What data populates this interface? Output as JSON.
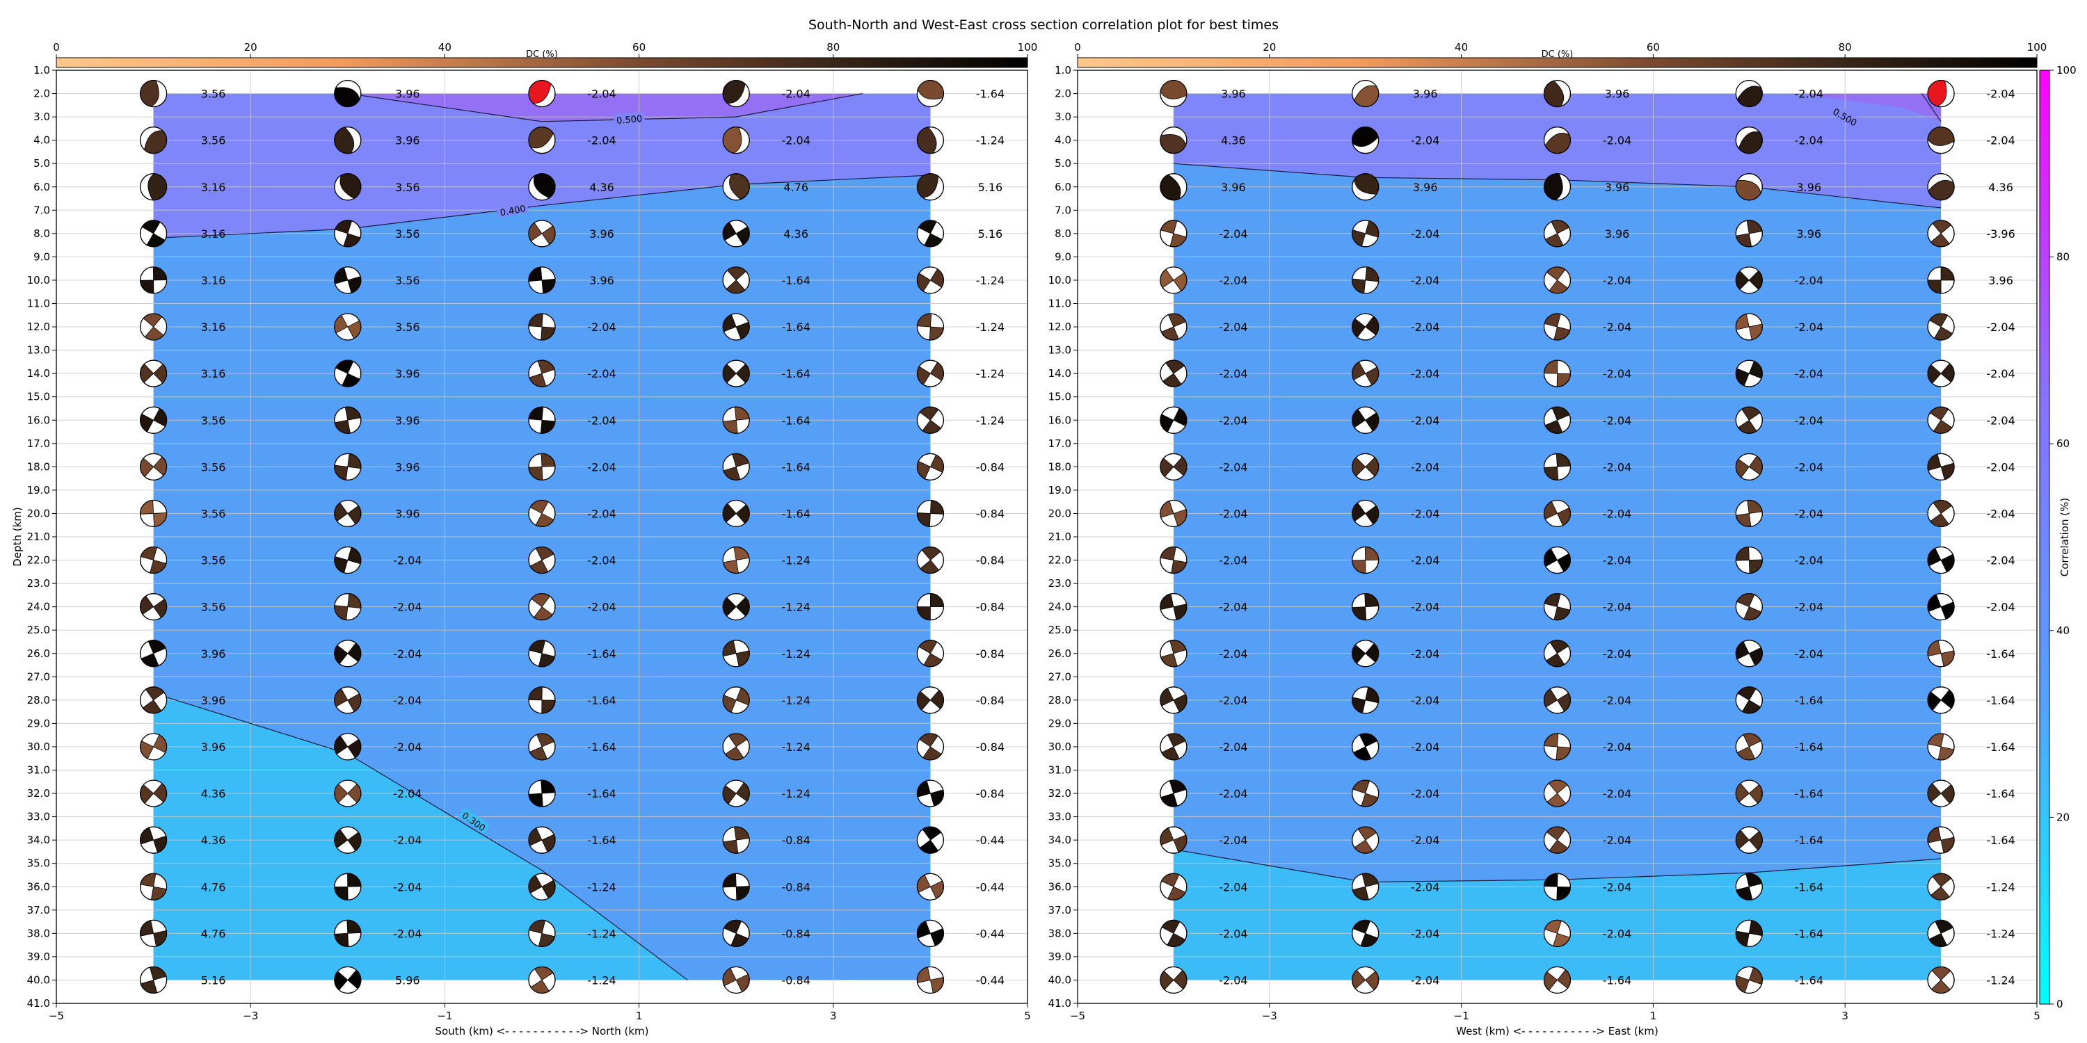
{
  "title": "South-North and West-East cross section correlation plot for best times",
  "colors": {
    "dc_scale": [
      "#ffc88a",
      "#f09a5c",
      "#7a4a30",
      "#3a2618",
      "#000000"
    ],
    "corr_scale": [
      "#00ffff",
      "#55a0ff",
      "#7f80ff",
      "#ff00ff"
    ],
    "band_low": "#3bbcf7",
    "band_mid": "#55a0f6",
    "band_high": "#7f86fa",
    "band_top": "#9470f5",
    "highlight": "#e8161e"
  },
  "chart_data": [
    {
      "type": "scatter",
      "panel": "south-north",
      "xlabel": "South (km) <- - - - - - - - - - -> North (km)",
      "ylabel": "Depth (km)",
      "xlim": [
        -5,
        5
      ],
      "ylim": [
        41,
        1
      ],
      "xticks": [
        "−5",
        "−3",
        "−1",
        "1",
        "3",
        "5"
      ],
      "yticks": [
        "1.0",
        "2.0",
        "3.0",
        "4.0",
        "5.0",
        "6.0",
        "7.0",
        "8.0",
        "9.0",
        "10.0",
        "11.0",
        "12.0",
        "13.0",
        "14.0",
        "15.0",
        "16.0",
        "17.0",
        "18.0",
        "19.0",
        "20.0",
        "21.0",
        "22.0",
        "23.0",
        "24.0",
        "25.0",
        "26.0",
        "27.0",
        "28.0",
        "29.0",
        "30.0",
        "31.0",
        "32.0",
        "33.0",
        "34.0",
        "35.0",
        "36.0",
        "37.0",
        "38.0",
        "39.0",
        "40.0",
        "41.0"
      ],
      "dc_colorbar": {
        "label": "DC (%)",
        "ticks": [
          "0",
          "20",
          "40",
          "60",
          "80",
          "100"
        ]
      },
      "contour_labels": [
        "0.500",
        "0.400",
        "0.300"
      ],
      "x": [
        -4,
        -2,
        0,
        2,
        4
      ],
      "depths": [
        2,
        4,
        6,
        8,
        10,
        12,
        14,
        16,
        18,
        20,
        22,
        24,
        26,
        28,
        30,
        32,
        34,
        36,
        38,
        40
      ],
      "times": [
        [
          "3.56",
          "3.96",
          "-2.04",
          "-2.04",
          "-1.64"
        ],
        [
          "3.56",
          "3.96",
          "-2.04",
          "-2.04",
          "-1.24"
        ],
        [
          "3.16",
          "3.56",
          "4.36",
          "4.76",
          "5.16"
        ],
        [
          "3.16",
          "3.56",
          "3.96",
          "4.36",
          "5.16"
        ],
        [
          "3.16",
          "3.56",
          "3.96",
          "-1.64",
          "-1.24"
        ],
        [
          "3.16",
          "3.56",
          "-2.04",
          "-1.64",
          "-1.24"
        ],
        [
          "3.16",
          "3.96",
          "-2.04",
          "-1.64",
          "-1.24"
        ],
        [
          "3.56",
          "3.96",
          "-2.04",
          "-1.64",
          "-1.24"
        ],
        [
          "3.56",
          "3.96",
          "-2.04",
          "-1.64",
          "-0.84"
        ],
        [
          "3.56",
          "3.96",
          "-2.04",
          "-1.64",
          "-0.84"
        ],
        [
          "3.56",
          "-2.04",
          "-2.04",
          "-1.24",
          "-0.84"
        ],
        [
          "3.56",
          "-2.04",
          "-2.04",
          "-1.24",
          "-0.84"
        ],
        [
          "3.96",
          "-2.04",
          "-1.64",
          "-1.24",
          "-0.84"
        ],
        [
          "3.96",
          "-2.04",
          "-1.64",
          "-1.24",
          "-0.84"
        ],
        [
          "3.96",
          "-2.04",
          "-1.64",
          "-1.24",
          "-0.84"
        ],
        [
          "4.36",
          "-2.04",
          "-1.64",
          "-1.24",
          "-0.84"
        ],
        [
          "4.36",
          "-2.04",
          "-1.64",
          "-0.84",
          "-0.44"
        ],
        [
          "4.76",
          "-2.04",
          "-1.24",
          "-0.84",
          "-0.44"
        ],
        [
          "4.76",
          "-2.04",
          "-1.24",
          "-0.84",
          "-0.44"
        ],
        [
          "5.16",
          "5.96",
          "-1.24",
          "-0.84",
          "-0.44"
        ]
      ],
      "contours": [
        {
          "label": "0.500",
          "points": [
            [
              -2,
              2
            ],
            [
              0,
              3.2
            ],
            [
              2,
              3.0
            ],
            [
              3.3,
              2
            ]
          ]
        },
        {
          "label": "0.400",
          "points": [
            [
              -4,
              8.2
            ],
            [
              -2,
              7.8
            ],
            [
              0,
              6.8
            ],
            [
              2,
              5.9
            ],
            [
              4,
              5.5
            ]
          ]
        },
        {
          "label": "0.300",
          "points": [
            [
              -4,
              27.7
            ],
            [
              -2,
              30.3
            ],
            [
              0,
              35.3
            ],
            [
              1.5,
              40
            ]
          ]
        }
      ]
    },
    {
      "type": "scatter",
      "panel": "west-east",
      "xlabel": "West (km) <- - - - - - - - - - -> East (km)",
      "ylabel": "",
      "xlim": [
        -5,
        5
      ],
      "ylim": [
        41,
        1
      ],
      "xticks": [
        "−5",
        "−3",
        "−1",
        "1",
        "3",
        "5"
      ],
      "yticks": [
        "1.0",
        "2.0",
        "3.0",
        "4.0",
        "5.0",
        "6.0",
        "7.0",
        "8.0",
        "9.0",
        "10.0",
        "11.0",
        "12.0",
        "13.0",
        "14.0",
        "15.0",
        "16.0",
        "17.0",
        "18.0",
        "19.0",
        "20.0",
        "21.0",
        "22.0",
        "23.0",
        "24.0",
        "25.0",
        "26.0",
        "27.0",
        "28.0",
        "29.0",
        "30.0",
        "31.0",
        "32.0",
        "33.0",
        "34.0",
        "35.0",
        "36.0",
        "37.0",
        "38.0",
        "39.0",
        "40.0",
        "41.0"
      ],
      "dc_colorbar": {
        "label": "DC (%)",
        "ticks": [
          "0",
          "20",
          "40",
          "60",
          "80",
          "100"
        ]
      },
      "corr_colorbar": {
        "label": "Correlation (%)",
        "ticks": [
          "0",
          "20",
          "40",
          "60",
          "80",
          "100"
        ]
      },
      "contour_labels": [
        "0.500"
      ],
      "x": [
        -4,
        -2,
        0,
        2,
        4
      ],
      "depths": [
        2,
        4,
        6,
        8,
        10,
        12,
        14,
        16,
        18,
        20,
        22,
        24,
        26,
        28,
        30,
        32,
        34,
        36,
        38,
        40
      ],
      "times": [
        [
          "3.96",
          "3.96",
          "3.96",
          "-2.04",
          "-2.04"
        ],
        [
          "4.36",
          "-2.04",
          "-2.04",
          "-2.04",
          "-2.04"
        ],
        [
          "3.96",
          "3.96",
          "3.96",
          "3.96",
          "4.36"
        ],
        [
          "-2.04",
          "-2.04",
          "3.96",
          "3.96",
          "-3.96"
        ],
        [
          "-2.04",
          "-2.04",
          "-2.04",
          "-2.04",
          "3.96"
        ],
        [
          "-2.04",
          "-2.04",
          "-2.04",
          "-2.04",
          "-2.04"
        ],
        [
          "-2.04",
          "-2.04",
          "-2.04",
          "-2.04",
          "-2.04"
        ],
        [
          "-2.04",
          "-2.04",
          "-2.04",
          "-2.04",
          "-2.04"
        ],
        [
          "-2.04",
          "-2.04",
          "-2.04",
          "-2.04",
          "-2.04"
        ],
        [
          "-2.04",
          "-2.04",
          "-2.04",
          "-2.04",
          "-2.04"
        ],
        [
          "-2.04",
          "-2.04",
          "-2.04",
          "-2.04",
          "-2.04"
        ],
        [
          "-2.04",
          "-2.04",
          "-2.04",
          "-2.04",
          "-2.04"
        ],
        [
          "-2.04",
          "-2.04",
          "-2.04",
          "-2.04",
          "-1.64"
        ],
        [
          "-2.04",
          "-2.04",
          "-2.04",
          "-1.64",
          "-1.64"
        ],
        [
          "-2.04",
          "-2.04",
          "-2.04",
          "-1.64",
          "-1.64"
        ],
        [
          "-2.04",
          "-2.04",
          "-2.04",
          "-1.64",
          "-1.64"
        ],
        [
          "-2.04",
          "-2.04",
          "-2.04",
          "-1.64",
          "-1.64"
        ],
        [
          "-2.04",
          "-2.04",
          "-2.04",
          "-1.64",
          "-1.24"
        ],
        [
          "-2.04",
          "-2.04",
          "-2.04",
          "-1.64",
          "-1.24"
        ],
        [
          "-2.04",
          "-2.04",
          "-1.64",
          "-1.64",
          "-1.24"
        ]
      ],
      "contours": [
        {
          "label": "0.500",
          "points": [
            [
              3.8,
              2
            ],
            [
              4,
              3.2
            ]
          ]
        },
        {
          "label": "",
          "points": [
            [
              -4,
              5.0
            ],
            [
              -2,
              5.6
            ],
            [
              0,
              5.7
            ],
            [
              2,
              6.0
            ],
            [
              4,
              6.9
            ]
          ]
        },
        {
          "label": "",
          "points": [
            [
              -4,
              34.4
            ],
            [
              -2,
              35.8
            ],
            [
              0,
              35.7
            ],
            [
              2,
              35.4
            ],
            [
              4,
              34.8
            ]
          ]
        }
      ]
    }
  ]
}
